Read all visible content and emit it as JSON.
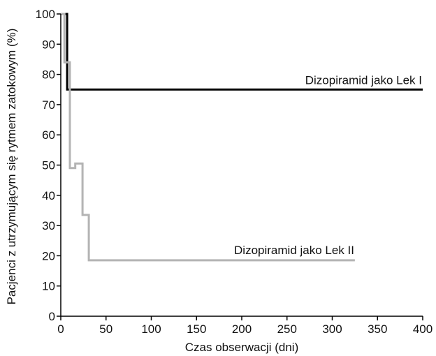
{
  "chart_data": {
    "type": "line",
    "step": true,
    "xlabel": "Czas obserwacji (dni)",
    "ylabel": "Pacjenci z utrzymującym się rytmem zatokowym (%)",
    "xlim": [
      0,
      400
    ],
    "ylim": [
      0,
      100
    ],
    "xticks": [
      0,
      50,
      100,
      150,
      200,
      250,
      300,
      350,
      400
    ],
    "yticks": [
      0,
      10,
      20,
      30,
      40,
      50,
      60,
      70,
      80,
      90,
      100
    ],
    "grid": false,
    "series": [
      {
        "name": "Dizopiramid jako Lek I",
        "color": "#000000",
        "points": [
          [
            0,
            100
          ],
          [
            7,
            100
          ],
          [
            7,
            75
          ],
          [
            400,
            75
          ]
        ]
      },
      {
        "name": "Dizopiramid jako Lek II",
        "color": "#b4b4b4",
        "points": [
          [
            0,
            100
          ],
          [
            4,
            100
          ],
          [
            4,
            84
          ],
          [
            10,
            84
          ],
          [
            10,
            49
          ],
          [
            16,
            49
          ],
          [
            16,
            50.5
          ],
          [
            24,
            50.5
          ],
          [
            24,
            33.5
          ],
          [
            31,
            33.5
          ],
          [
            31,
            18.5
          ],
          [
            325,
            18.5
          ]
        ]
      }
    ]
  }
}
